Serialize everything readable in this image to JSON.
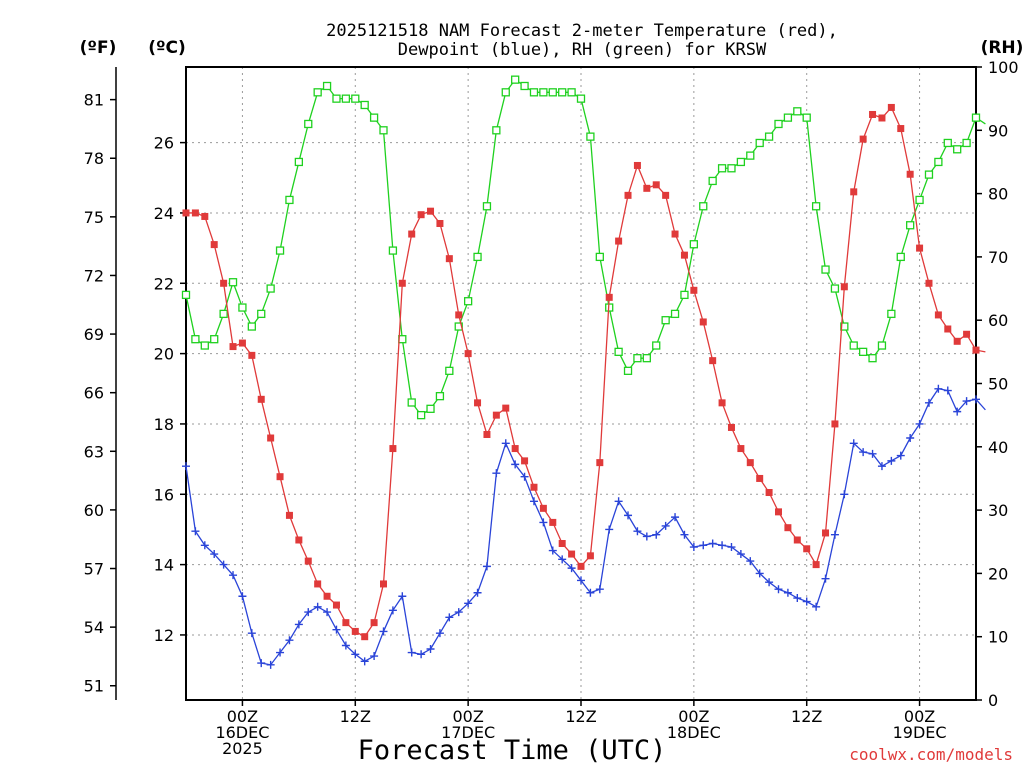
{
  "chart_data": {
    "type": "line",
    "title_line1": "2025121518 NAM Forecast 2-meter Temperature (red),",
    "title_line2": "Dewpoint (blue), RH (green) for KRSW",
    "xlabel": "Forecast Time (UTC)",
    "credit": "coolwx.com/models",
    "units": {
      "fahrenheit": "(ºF)",
      "celsius": "(ºC)",
      "rh": "(RH)"
    },
    "fahrenheit_ticks": [
      "81",
      "78",
      "75",
      "72",
      "69",
      "66",
      "63",
      "60",
      "57",
      "54",
      "51"
    ],
    "celsius_ticks": [
      "26",
      "24",
      "22",
      "20",
      "18",
      "16",
      "14",
      "12"
    ],
    "rh_ticks": [
      "100",
      "90",
      "80",
      "70",
      "60",
      "50",
      "40",
      "30",
      "20",
      "10",
      "0"
    ],
    "celsius_range": [
      10.15,
      28.15
    ],
    "rh_range": [
      0,
      100
    ],
    "x_range": [
      18,
      102
    ],
    "x_ticks": [
      {
        "h": 24,
        "line1": "00Z",
        "line2": "16DEC",
        "line3": "2025"
      },
      {
        "h": 36,
        "line1": "12Z",
        "line2": "",
        "line3": ""
      },
      {
        "h": 48,
        "line1": "00Z",
        "line2": "17DEC",
        "line3": ""
      },
      {
        "h": 60,
        "line1": "12Z",
        "line2": "",
        "line3": ""
      },
      {
        "h": 72,
        "line1": "00Z",
        "line2": "18DEC",
        "line3": ""
      },
      {
        "h": 84,
        "line1": "12Z",
        "line2": "",
        "line3": ""
      },
      {
        "h": 96,
        "line1": "00Z",
        "line2": "19DEC",
        "line3": ""
      }
    ],
    "colors": {
      "temperature": "#e03a3a",
      "dewpoint": "#2a44d8",
      "rh": "#1fd11f"
    },
    "series": [
      {
        "name": "Temperature (°C)",
        "values": [
          24.0,
          24.0,
          23.9,
          23.1,
          22.0,
          20.2,
          20.3,
          19.95,
          18.7,
          17.6,
          16.5,
          15.4,
          14.7,
          14.1,
          13.45,
          13.1,
          12.85,
          12.35,
          12.1,
          11.95,
          12.35,
          13.45,
          17.3,
          22.0,
          23.4,
          23.95,
          24.05,
          23.7,
          22.7,
          21.1,
          20.0,
          18.6,
          17.7,
          18.25,
          18.45,
          17.3,
          16.95,
          16.2,
          15.6,
          15.2,
          14.6,
          14.3,
          13.95,
          14.25,
          16.9,
          21.6,
          23.2,
          24.5,
          25.35,
          24.7,
          24.8,
          24.5,
          23.4,
          22.8,
          21.8,
          20.9,
          19.8,
          18.6,
          17.9,
          17.3,
          16.9,
          16.45,
          16.05,
          15.5,
          15.05,
          14.7,
          14.45,
          14.0,
          14.9,
          18.0,
          21.9,
          24.6,
          26.1,
          26.8,
          26.7,
          27.0,
          26.4,
          25.1,
          23.0,
          22.0,
          21.1,
          20.7,
          20.35,
          20.55,
          20.1,
          20.05
        ]
      },
      {
        "name": "Dewpoint (°C)",
        "values": [
          16.8,
          14.95,
          14.55,
          14.3,
          14.0,
          13.7,
          13.1,
          12.05,
          11.2,
          11.15,
          11.5,
          11.85,
          12.3,
          12.65,
          12.8,
          12.65,
          12.15,
          11.7,
          11.45,
          11.25,
          11.4,
          12.1,
          12.7,
          13.1,
          11.5,
          11.45,
          11.6,
          12.05,
          12.5,
          12.65,
          12.9,
          13.2,
          13.95,
          16.6,
          17.45,
          16.85,
          16.5,
          15.8,
          15.2,
          14.4,
          14.15,
          13.9,
          13.55,
          13.2,
          13.3,
          15.0,
          15.8,
          15.4,
          14.95,
          14.8,
          14.85,
          15.1,
          15.35,
          14.85,
          14.5,
          14.55,
          14.6,
          14.55,
          14.5,
          14.3,
          14.1,
          13.75,
          13.5,
          13.3,
          13.2,
          13.05,
          12.95,
          12.8,
          13.6,
          14.85,
          16.0,
          17.45,
          17.2,
          17.15,
          16.8,
          16.95,
          17.1,
          17.6,
          18.0,
          18.6,
          19.0,
          18.95,
          18.35,
          18.65,
          18.7,
          18.4
        ]
      },
      {
        "name": "RH (%)",
        "values": [
          64,
          57,
          56,
          57,
          61,
          66,
          62,
          59,
          61,
          65,
          71,
          79,
          85,
          91,
          96,
          97,
          95,
          95,
          95,
          94,
          92,
          90,
          71,
          57,
          47,
          45,
          46,
          48,
          52,
          59,
          63,
          70,
          78,
          90,
          96,
          98,
          97,
          96,
          96,
          96,
          96,
          96,
          95,
          89,
          70,
          62,
          55,
          52,
          54,
          54,
          56,
          60,
          61,
          64,
          72,
          78,
          82,
          84,
          84,
          85,
          86,
          88,
          89,
          91,
          92,
          93,
          92,
          78,
          68,
          65,
          59,
          56,
          55,
          54,
          56,
          61,
          70,
          75,
          79,
          83,
          85,
          88,
          87,
          88,
          92,
          91
        ]
      }
    ]
  }
}
